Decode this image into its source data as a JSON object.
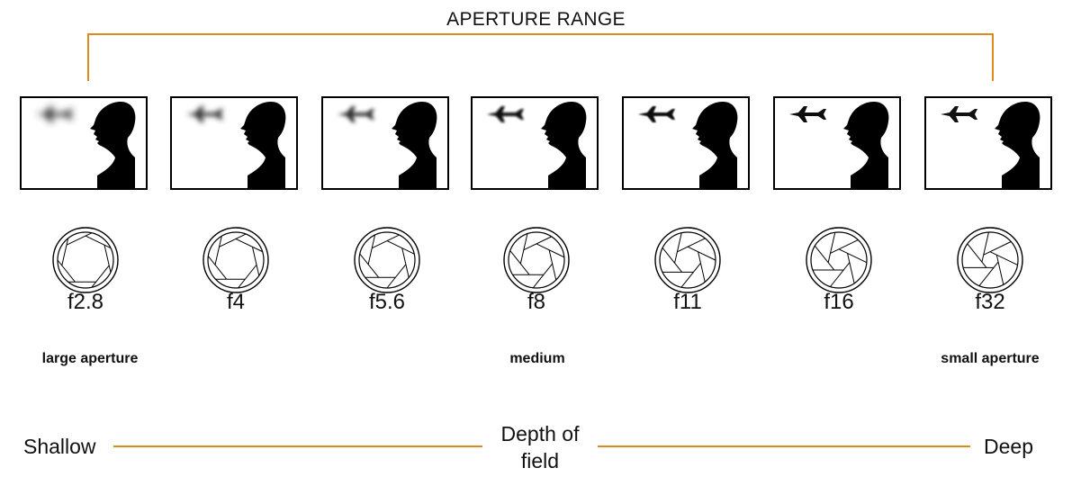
{
  "title": "APERTURE RANGE",
  "accent_color": "#e08a1e",
  "stops": [
    {
      "label": "f2.8",
      "blur": 4.0,
      "iris_open": 0.95
    },
    {
      "label": "f4",
      "blur": 3.0,
      "iris_open": 0.8
    },
    {
      "label": "f5.6",
      "blur": 2.2,
      "iris_open": 0.7
    },
    {
      "label": "f8",
      "blur": 1.4,
      "iris_open": 0.55
    },
    {
      "label": "f11",
      "blur": 0.9,
      "iris_open": 0.4
    },
    {
      "label": "f16",
      "blur": 0.3,
      "iris_open": 0.28
    },
    {
      "label": "f32",
      "blur": 0.0,
      "iris_open": 0.15
    }
  ],
  "range_labels": {
    "large": "large aperture",
    "medium": "medium",
    "small": "small aperture"
  },
  "depth_of_field": {
    "left": "Shallow",
    "center_line1": "Depth of",
    "center_line2": "field",
    "right": "Deep"
  },
  "icons": {
    "subject": "woman-silhouette-icon",
    "background": "airplane-icon",
    "aperture": "camera-iris-icon"
  }
}
